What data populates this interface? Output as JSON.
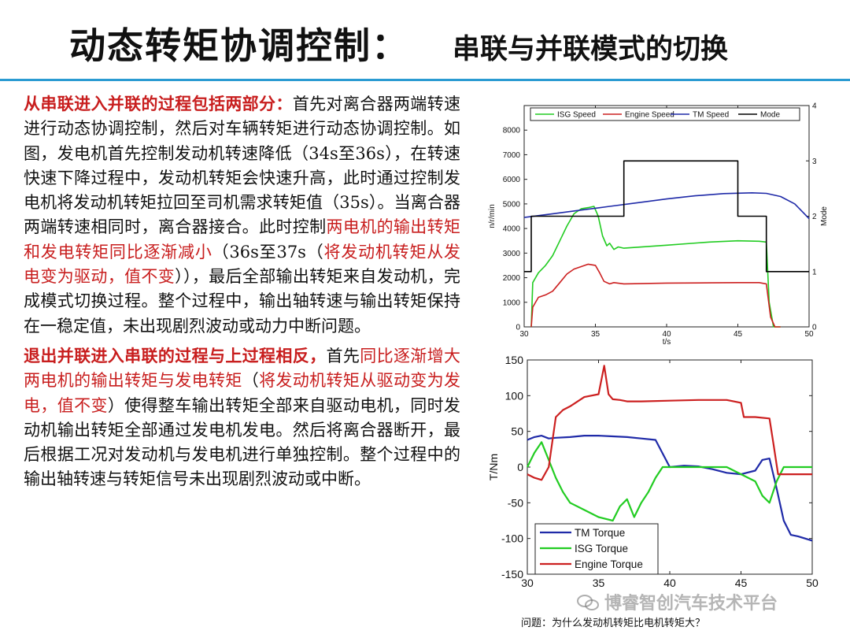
{
  "header": {
    "title_main": "动态转矩协调控制：",
    "title_sub": "串联与并联模式的切换"
  },
  "colors": {
    "accent_line": "#2b9bd2",
    "highlight_red": "#c81e1e"
  },
  "paragraph1": {
    "lead": "从串联进入并联的过程包括两部分：",
    "body_a": "首先对离合器两端转速进行动态协调控制，然后对车辆转矩进行动态协调控制。如图，发电机首先控制发动机转速降低（34s至36s），在转速快速下降过程中，发动机转矩会快速升高，此时通过控制发电机将发动机转矩拉回至司机需求转矩值（35s）。当离合器两端转速相同时，离合器接合。此时控制",
    "red_a": "两电机的输出转矩和发电转矩同比逐渐减小",
    "body_b": "（36s至37s（",
    "red_b": "将发动机转矩从发电变为驱动，值不变",
    "body_c": "）），最后全部输出转矩来自发动机，完成模式切换过程。整个过程中，输出轴转速与输出转矩保持在一稳定值，未出现剧烈波动或动力中断问题。"
  },
  "paragraph2": {
    "lead": "退出并联进入串联的过程与上过程相反，",
    "body_a": "首先",
    "red_a": "同比逐渐增大两电机的输出转矩与发电转矩",
    "body_b": "（",
    "red_b": "将发动机转矩从驱动变为发电，值不变",
    "body_c": "）使得整车输出转矩全部来自驱动电机，同时发动机输出转矩全部通过发电机发电。然后将离合器断开，最后根据工况对发动机与发电机进行单独控制。整个过程中的输出轴转速与转矩信号未出现剧烈波动或中断。"
  },
  "question": "问题：为什么发动机转矩比电机转矩大？",
  "watermark": "博睿智创汽车技术平台",
  "chart_data": [
    {
      "type": "line",
      "xlabel": "t/s",
      "ylabel": "n/r/min",
      "y2label": "Mode",
      "xlim": [
        30,
        50
      ],
      "ylim": [
        0,
        9000
      ],
      "y2lim": [
        0,
        4
      ],
      "xticks": [
        30,
        35,
        40,
        45,
        50
      ],
      "yticks": [
        0,
        1000,
        2000,
        3000,
        4000,
        5000,
        6000,
        7000,
        8000
      ],
      "y2ticks": [
        0,
        1,
        2,
        3,
        4
      ],
      "legend_position": "top",
      "series": [
        {
          "name": "ISG Speed",
          "color": "#22cc22",
          "axis": "left",
          "x": [
            30.5,
            30.6,
            31,
            31.5,
            32,
            32.5,
            33,
            33.5,
            34,
            34.5,
            34.9,
            35.2,
            35.5,
            35.8,
            36.0,
            36.3,
            36.6,
            37,
            40,
            43,
            45,
            46.5,
            47.0,
            47.2,
            47.5,
            48
          ],
          "y": [
            0,
            1800,
            2200,
            2500,
            2900,
            3500,
            4100,
            4600,
            4800,
            4850,
            4900,
            4500,
            3700,
            3300,
            3400,
            3150,
            3250,
            3200,
            3320,
            3450,
            3500,
            3480,
            3450,
            1000,
            0,
            0
          ]
        },
        {
          "name": "Engine Speed",
          "color": "#cc2020",
          "axis": "left",
          "x": [
            30.5,
            30.6,
            31,
            31.5,
            32,
            32.5,
            33,
            33.5,
            34,
            34.5,
            35,
            35.3,
            35.6,
            36,
            36.3,
            37,
            40,
            43,
            45,
            46.5,
            47.0,
            47.3,
            47.6,
            48
          ],
          "y": [
            0,
            800,
            1200,
            1300,
            1450,
            1800,
            2150,
            2350,
            2450,
            2550,
            2500,
            2200,
            1850,
            1750,
            1800,
            1750,
            1780,
            1790,
            1800,
            1800,
            1750,
            400,
            0,
            0
          ]
        },
        {
          "name": "TM Speed",
          "color": "#1f2aa8",
          "axis": "left",
          "x": [
            30,
            32,
            34,
            36,
            38,
            40,
            42,
            44,
            46,
            47,
            48,
            49,
            50
          ],
          "y": [
            4450,
            4600,
            4750,
            4900,
            5050,
            5200,
            5330,
            5420,
            5450,
            5430,
            5300,
            5000,
            4400
          ]
        },
        {
          "name": "Mode",
          "color": "#000000",
          "axis": "right",
          "x": [
            30,
            30.5,
            30.5,
            37,
            37,
            45,
            45,
            47,
            47,
            50
          ],
          "y": [
            1,
            1,
            2,
            2,
            3,
            3,
            2,
            2,
            1,
            1
          ]
        }
      ]
    },
    {
      "type": "line",
      "xlabel": "",
      "ylabel": "T/Nm",
      "xlim": [
        30,
        50
      ],
      "ylim": [
        -150,
        150
      ],
      "xticks": [
        30,
        35,
        40,
        45,
        50
      ],
      "yticks": [
        -150,
        -100,
        -50,
        0,
        50,
        100,
        150
      ],
      "legend_position": "bottom-left",
      "series": [
        {
          "name": "TM Torque",
          "color": "#1f2aa8",
          "x": [
            30,
            30.5,
            31,
            31.5,
            32,
            33,
            34,
            35,
            36,
            37,
            38,
            39,
            40,
            41,
            42,
            43,
            44,
            45,
            46,
            46.5,
            47,
            47.5,
            48,
            48.5,
            49,
            50
          ],
          "y": [
            38,
            42,
            44,
            40,
            41,
            42,
            44,
            44,
            43,
            42,
            40,
            38,
            0,
            2,
            1,
            -3,
            -8,
            -10,
            -5,
            10,
            12,
            -30,
            -75,
            -95,
            -97,
            -103
          ]
        },
        {
          "name": "ISG Torque",
          "color": "#22cc22",
          "x": [
            30,
            30.5,
            31,
            31.5,
            32,
            32.5,
            33,
            34,
            35,
            36,
            36.5,
            37,
            37.5,
            38,
            38.5,
            39,
            39.5,
            40,
            42,
            44,
            46,
            46.5,
            47,
            47.5,
            48,
            50
          ],
          "y": [
            0,
            20,
            35,
            10,
            -15,
            -35,
            -50,
            -60,
            -70,
            -75,
            -55,
            -45,
            -70,
            -50,
            -35,
            -15,
            0,
            0,
            0,
            0,
            -20,
            -40,
            -50,
            -20,
            0,
            0
          ]
        },
        {
          "name": "Engine Torque",
          "color": "#cc2020",
          "x": [
            30,
            30.5,
            31,
            31.5,
            32,
            32.5,
            33,
            34,
            35,
            35.4,
            35.7,
            36,
            36.5,
            37,
            38,
            40,
            42,
            44,
            45,
            45.2,
            46,
            47,
            47.3,
            47.6,
            48,
            50
          ],
          "y": [
            -10,
            -15,
            -18,
            0,
            70,
            80,
            85,
            98,
            102,
            142,
            102,
            95,
            94,
            92,
            92,
            93,
            94,
            94,
            90,
            70,
            70,
            68,
            30,
            -10,
            -10,
            -10
          ]
        }
      ]
    }
  ]
}
